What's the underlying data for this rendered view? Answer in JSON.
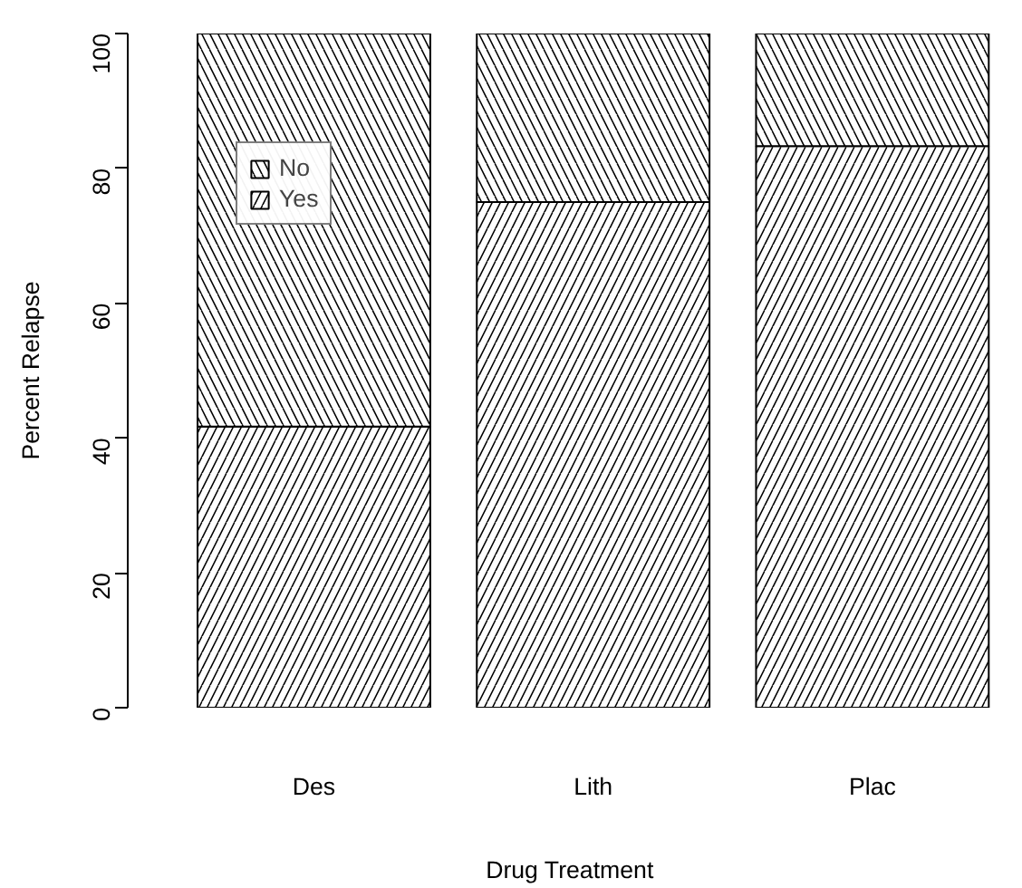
{
  "chart_data": {
    "type": "bar",
    "stacked": true,
    "xlabel": "Drug Treatment",
    "ylabel": "Percent Relapse",
    "categories": [
      "Des",
      "Lith",
      "Plac"
    ],
    "series": [
      {
        "name": "Yes",
        "color": "#ffffff",
        "values": [
          41.7,
          75.0,
          83.3
        ]
      },
      {
        "name": "No",
        "color": "#ffffff",
        "values": [
          58.3,
          25.0,
          16.7
        ]
      }
    ],
    "ylim": [
      0,
      100
    ],
    "yticks": [
      0,
      20,
      40,
      60,
      80,
      100
    ],
    "grid": false,
    "legend": "top left"
  }
}
